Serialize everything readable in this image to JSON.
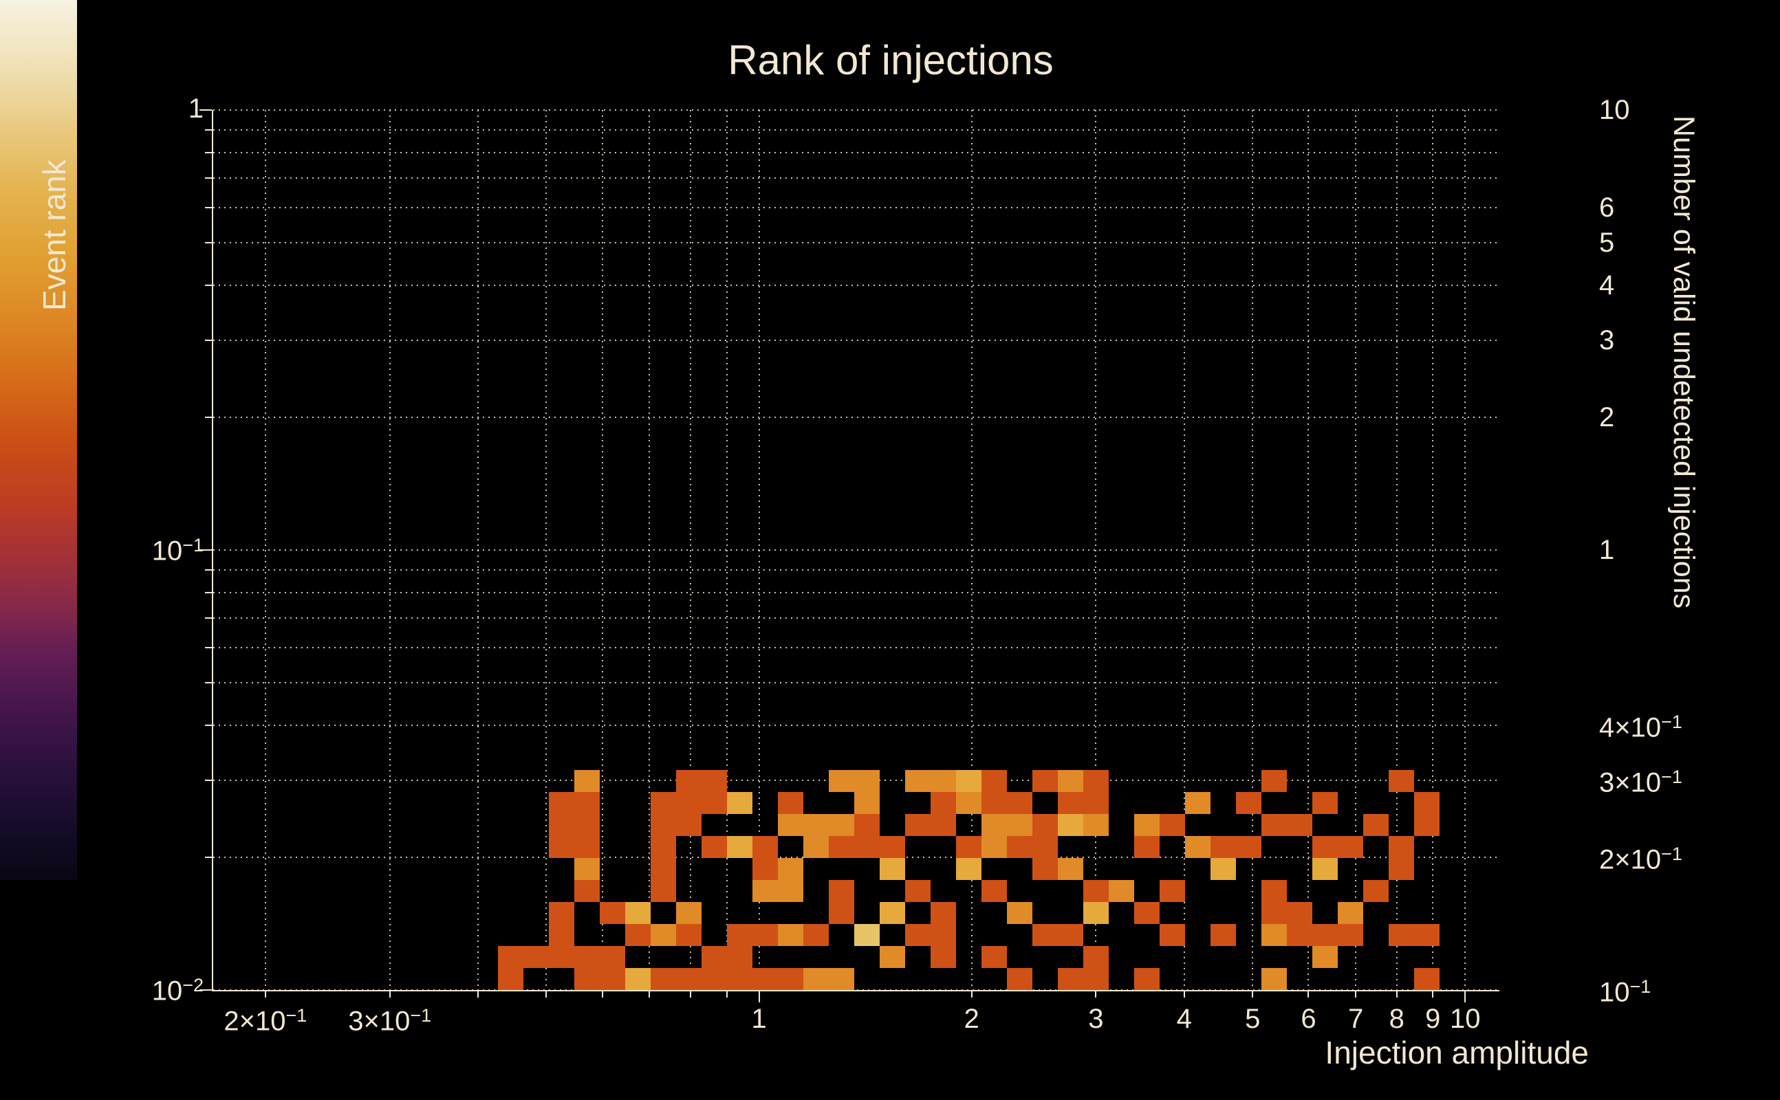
{
  "title": "Rank of injections",
  "chart_data": {
    "type": "heatmap",
    "title": "Rank of injections",
    "xlabel": "Injection amplitude",
    "ylabel": "Event rank",
    "zlabel": "Number of valid undetected injections",
    "x_scale": "log",
    "y_scale": "log",
    "z_scale": "log",
    "x_range": [
      0.1687,
      11.18
    ],
    "y_range": [
      0.01,
      1.0
    ],
    "z_range": [
      0.1,
      10
    ],
    "grid": true,
    "background_color": "#000000",
    "foreground_color": "#f2e8d2",
    "x_gridlines": [
      0.2,
      0.3,
      0.4,
      0.5,
      0.6,
      0.7,
      0.8,
      0.9,
      1,
      2,
      3,
      4,
      5,
      6,
      7,
      8,
      9,
      10
    ],
    "y_gridlines": [
      1,
      0.9,
      0.8,
      0.7,
      0.6,
      0.5,
      0.4,
      0.3,
      0.2,
      0.1,
      0.09,
      0.08,
      0.07,
      0.06,
      0.05,
      0.04,
      0.03,
      0.02,
      0.01
    ],
    "x_tick_labels": [
      {
        "v": 0.2,
        "t": "2×10",
        "s": "−1"
      },
      {
        "v": 0.3,
        "t": "3×10",
        "s": "−1"
      },
      {
        "v": 1,
        "t": "1"
      },
      {
        "v": 2,
        "t": "2"
      },
      {
        "v": 3,
        "t": "3"
      },
      {
        "v": 4,
        "t": "4"
      },
      {
        "v": 5,
        "t": "5"
      },
      {
        "v": 6,
        "t": "6"
      },
      {
        "v": 7,
        "t": "7"
      },
      {
        "v": 8,
        "t": "8"
      },
      {
        "v": 9,
        "t": "9"
      },
      {
        "v": 10,
        "t": "10"
      }
    ],
    "y_tick_labels": [
      {
        "v": 1,
        "t": "1"
      },
      {
        "v": 0.1,
        "t": "10",
        "s": "−1"
      },
      {
        "v": 0.01,
        "t": "10",
        "s": "−2"
      }
    ],
    "colorbar": {
      "labels": [
        {
          "v": 10,
          "t": "10"
        },
        {
          "v": 6,
          "t": "6"
        },
        {
          "v": 5,
          "t": "5"
        },
        {
          "v": 4,
          "t": "4"
        },
        {
          "v": 3,
          "t": "3"
        },
        {
          "v": 2,
          "t": "2"
        },
        {
          "v": 1,
          "t": "1"
        },
        {
          "v": 0.4,
          "t": "4×10",
          "s": "−1"
        },
        {
          "v": 0.3,
          "t": "3×10",
          "s": "−1"
        },
        {
          "v": 0.2,
          "t": "2×10",
          "s": "−1"
        },
        {
          "v": 0.1,
          "t": "10",
          "s": "−1"
        }
      ],
      "minor_ticks": [
        9,
        8,
        7,
        6,
        5,
        4,
        3,
        2,
        0.9,
        0.8,
        0.7,
        0.6,
        0.5,
        0.4,
        0.3,
        0.2
      ],
      "major_ticks": [
        1
      ],
      "gradient_stops": [
        {
          "t": 0.0,
          "color": "#0a0613"
        },
        {
          "t": 0.06,
          "color": "#150c29"
        },
        {
          "t": 0.13,
          "color": "#2b113e"
        },
        {
          "t": 0.2,
          "color": "#47164e"
        },
        {
          "t": 0.26,
          "color": "#651e54"
        },
        {
          "t": 0.31,
          "color": "#86284a"
        },
        {
          "t": 0.37,
          "color": "#a43137"
        },
        {
          "t": 0.43,
          "color": "#bd3d23"
        },
        {
          "t": 0.5,
          "color": "#cc4f15"
        },
        {
          "t": 0.57,
          "color": "#d66d18"
        },
        {
          "t": 0.64,
          "color": "#dd8825"
        },
        {
          "t": 0.71,
          "color": "#e1a032"
        },
        {
          "t": 0.78,
          "color": "#e4b24e"
        },
        {
          "t": 0.85,
          "color": "#e9c87e"
        },
        {
          "t": 0.92,
          "color": "#f0dfb2"
        },
        {
          "t": 1.0,
          "color": "#f7f2e2"
        }
      ]
    },
    "value_palette": {
      "1": "#d05115",
      "2": "#e18a28",
      "3": "#e5a93c",
      "4": "#e8c468"
    },
    "cells_format": [
      "col",
      "row",
      "count"
    ],
    "cells": [
      [
        11,
        0,
        1
      ],
      [
        14,
        0,
        1
      ],
      [
        15,
        0,
        1
      ],
      [
        16,
        0,
        3
      ],
      [
        17,
        0,
        1
      ],
      [
        18,
        0,
        1
      ],
      [
        19,
        0,
        1
      ],
      [
        20,
        0,
        1
      ],
      [
        21,
        0,
        1
      ],
      [
        22,
        0,
        1
      ],
      [
        23,
        0,
        2
      ],
      [
        24,
        0,
        2
      ],
      [
        31,
        0,
        1
      ],
      [
        33,
        0,
        1
      ],
      [
        34,
        0,
        1
      ],
      [
        36,
        0,
        1
      ],
      [
        41,
        0,
        2
      ],
      [
        47,
        0,
        1
      ],
      [
        11,
        1,
        1
      ],
      [
        12,
        1,
        1
      ],
      [
        13,
        1,
        1
      ],
      [
        14,
        1,
        1
      ],
      [
        15,
        1,
        1
      ],
      [
        19,
        1,
        1
      ],
      [
        20,
        1,
        1
      ],
      [
        26,
        1,
        2
      ],
      [
        28,
        1,
        1
      ],
      [
        30,
        1,
        1
      ],
      [
        34,
        1,
        1
      ],
      [
        43,
        1,
        2
      ],
      [
        13,
        2,
        1
      ],
      [
        16,
        2,
        1
      ],
      [
        17,
        2,
        2
      ],
      [
        18,
        2,
        1
      ],
      [
        20,
        2,
        1
      ],
      [
        21,
        2,
        1
      ],
      [
        22,
        2,
        2
      ],
      [
        23,
        2,
        1
      ],
      [
        25,
        2,
        4
      ],
      [
        27,
        2,
        1
      ],
      [
        28,
        2,
        1
      ],
      [
        32,
        2,
        1
      ],
      [
        33,
        2,
        1
      ],
      [
        37,
        2,
        1
      ],
      [
        39,
        2,
        1
      ],
      [
        41,
        2,
        2
      ],
      [
        42,
        2,
        1
      ],
      [
        43,
        2,
        1
      ],
      [
        44,
        2,
        1
      ],
      [
        46,
        2,
        1
      ],
      [
        47,
        2,
        1
      ],
      [
        13,
        3,
        1
      ],
      [
        15,
        3,
        1
      ],
      [
        16,
        3,
        3
      ],
      [
        18,
        3,
        2
      ],
      [
        24,
        3,
        1
      ],
      [
        26,
        3,
        3
      ],
      [
        28,
        3,
        1
      ],
      [
        31,
        3,
        2
      ],
      [
        34,
        3,
        3
      ],
      [
        36,
        3,
        1
      ],
      [
        41,
        3,
        1
      ],
      [
        42,
        3,
        1
      ],
      [
        44,
        3,
        2
      ],
      [
        14,
        4,
        1
      ],
      [
        17,
        4,
        1
      ],
      [
        21,
        4,
        2
      ],
      [
        22,
        4,
        2
      ],
      [
        24,
        4,
        1
      ],
      [
        27,
        4,
        1
      ],
      [
        30,
        4,
        1
      ],
      [
        34,
        4,
        1
      ],
      [
        35,
        4,
        2
      ],
      [
        37,
        4,
        1
      ],
      [
        41,
        4,
        1
      ],
      [
        45,
        4,
        1
      ],
      [
        14,
        5,
        2
      ],
      [
        17,
        5,
        1
      ],
      [
        21,
        5,
        1
      ],
      [
        22,
        5,
        2
      ],
      [
        26,
        5,
        3
      ],
      [
        29,
        5,
        3
      ],
      [
        32,
        5,
        1
      ],
      [
        33,
        5,
        2
      ],
      [
        39,
        5,
        3
      ],
      [
        43,
        5,
        3
      ],
      [
        46,
        5,
        1
      ],
      [
        13,
        6,
        1
      ],
      [
        14,
        6,
        1
      ],
      [
        17,
        6,
        1
      ],
      [
        19,
        6,
        1
      ],
      [
        20,
        6,
        3
      ],
      [
        21,
        6,
        1
      ],
      [
        23,
        6,
        2
      ],
      [
        24,
        6,
        1
      ],
      [
        25,
        6,
        1
      ],
      [
        26,
        6,
        1
      ],
      [
        29,
        6,
        1
      ],
      [
        30,
        6,
        2
      ],
      [
        31,
        6,
        1
      ],
      [
        32,
        6,
        1
      ],
      [
        36,
        6,
        1
      ],
      [
        38,
        6,
        2
      ],
      [
        39,
        6,
        1
      ],
      [
        40,
        6,
        1
      ],
      [
        43,
        6,
        1
      ],
      [
        44,
        6,
        1
      ],
      [
        46,
        6,
        1
      ],
      [
        13,
        7,
        1
      ],
      [
        14,
        7,
        1
      ],
      [
        17,
        7,
        1
      ],
      [
        18,
        7,
        1
      ],
      [
        22,
        7,
        2
      ],
      [
        23,
        7,
        2
      ],
      [
        24,
        7,
        2
      ],
      [
        25,
        7,
        1
      ],
      [
        27,
        7,
        1
      ],
      [
        28,
        7,
        1
      ],
      [
        30,
        7,
        2
      ],
      [
        31,
        7,
        2
      ],
      [
        32,
        7,
        1
      ],
      [
        33,
        7,
        3
      ],
      [
        34,
        7,
        2
      ],
      [
        36,
        7,
        2
      ],
      [
        37,
        7,
        1
      ],
      [
        41,
        7,
        1
      ],
      [
        42,
        7,
        1
      ],
      [
        45,
        7,
        1
      ],
      [
        47,
        7,
        1
      ],
      [
        13,
        8,
        1
      ],
      [
        14,
        8,
        1
      ],
      [
        17,
        8,
        1
      ],
      [
        18,
        8,
        1
      ],
      [
        19,
        8,
        1
      ],
      [
        20,
        8,
        3
      ],
      [
        22,
        8,
        1
      ],
      [
        25,
        8,
        2
      ],
      [
        28,
        8,
        1
      ],
      [
        29,
        8,
        2
      ],
      [
        30,
        8,
        1
      ],
      [
        31,
        8,
        1
      ],
      [
        33,
        8,
        1
      ],
      [
        34,
        8,
        1
      ],
      [
        38,
        8,
        2
      ],
      [
        40,
        8,
        1
      ],
      [
        43,
        8,
        1
      ],
      [
        47,
        8,
        1
      ],
      [
        14,
        9,
        2
      ],
      [
        18,
        9,
        1
      ],
      [
        19,
        9,
        1
      ],
      [
        24,
        9,
        2
      ],
      [
        25,
        9,
        2
      ],
      [
        27,
        9,
        2
      ],
      [
        28,
        9,
        2
      ],
      [
        29,
        9,
        3
      ],
      [
        30,
        9,
        1
      ],
      [
        32,
        9,
        1
      ],
      [
        33,
        9,
        2
      ],
      [
        34,
        9,
        1
      ],
      [
        41,
        9,
        1
      ],
      [
        46,
        9,
        1
      ]
    ]
  }
}
